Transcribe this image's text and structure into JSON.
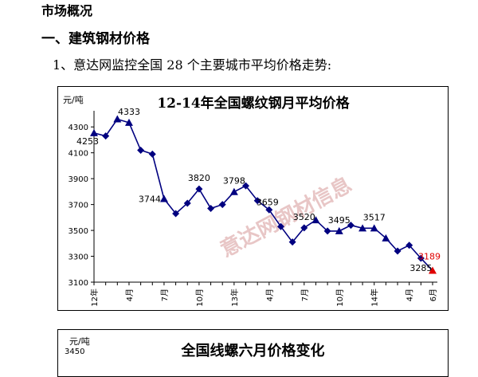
{
  "headings": {
    "market": "市场概况",
    "section": "一、建筑钢材价格",
    "intro": "1、意达网监控全国 28 个主要城市平均价格走势:"
  },
  "chart_data": [
    {
      "type": "line",
      "title": "12-14年全国螺纹钢月平均价格",
      "ylabel": "元/吨",
      "xlabel": "",
      "ylim": [
        3100,
        4400
      ],
      "yticks": [
        3100,
        3300,
        3500,
        3700,
        3900,
        4100,
        4300
      ],
      "x_tick_labels": [
        "12年",
        "4月",
        "7月",
        "10月",
        "13年",
        "4月",
        "7月",
        "10月",
        "14年",
        "4月",
        "6月"
      ],
      "x_tick_index": [
        0,
        3,
        6,
        9,
        12,
        15,
        18,
        21,
        24,
        27,
        29
      ],
      "series": [
        {
          "color": "#000080",
          "values": [
            4253,
            4230,
            4360,
            4333,
            4120,
            4090,
            3744,
            3630,
            3710,
            3820,
            3670,
            3700,
            3798,
            3845,
            3730,
            3659,
            3530,
            3410,
            3520,
            3580,
            3495,
            3495,
            3540,
            3517,
            3517,
            3440,
            3340,
            3385,
            3285,
            3189
          ],
          "markers": [
            "tri",
            "dia",
            "tri",
            "tri",
            "dia",
            "dia",
            "tri",
            "dia",
            "dia",
            "dia",
            "dia",
            "dia",
            "tri",
            "dia",
            "dia",
            "dia",
            "dia",
            "dia",
            "dia",
            "tri",
            "dia",
            "tri",
            "dia",
            "tri",
            "tri",
            "tri",
            "dia",
            "dia",
            "dia",
            "tri"
          ]
        }
      ],
      "data_labels": [
        {
          "index": 0,
          "text": "4253"
        },
        {
          "index": 3,
          "text": "4333"
        },
        {
          "index": 6,
          "text": "3744"
        },
        {
          "index": 9,
          "text": "3820"
        },
        {
          "index": 12,
          "text": "3798"
        },
        {
          "index": 15,
          "text": "3659"
        },
        {
          "index": 18,
          "text": "3520"
        },
        {
          "index": 21,
          "text": "3495"
        },
        {
          "index": 24,
          "text": "3517"
        },
        {
          "index": 28,
          "text": "3285"
        },
        {
          "index": 29,
          "text": "3189"
        }
      ],
      "last_point_color": "#e00000",
      "watermark": "意达网钢材信息",
      "grid": false
    },
    {
      "type": "line",
      "title": "全国线螺六月价格变化",
      "ylabel": "元/吨",
      "visible_tick": "3450"
    }
  ]
}
